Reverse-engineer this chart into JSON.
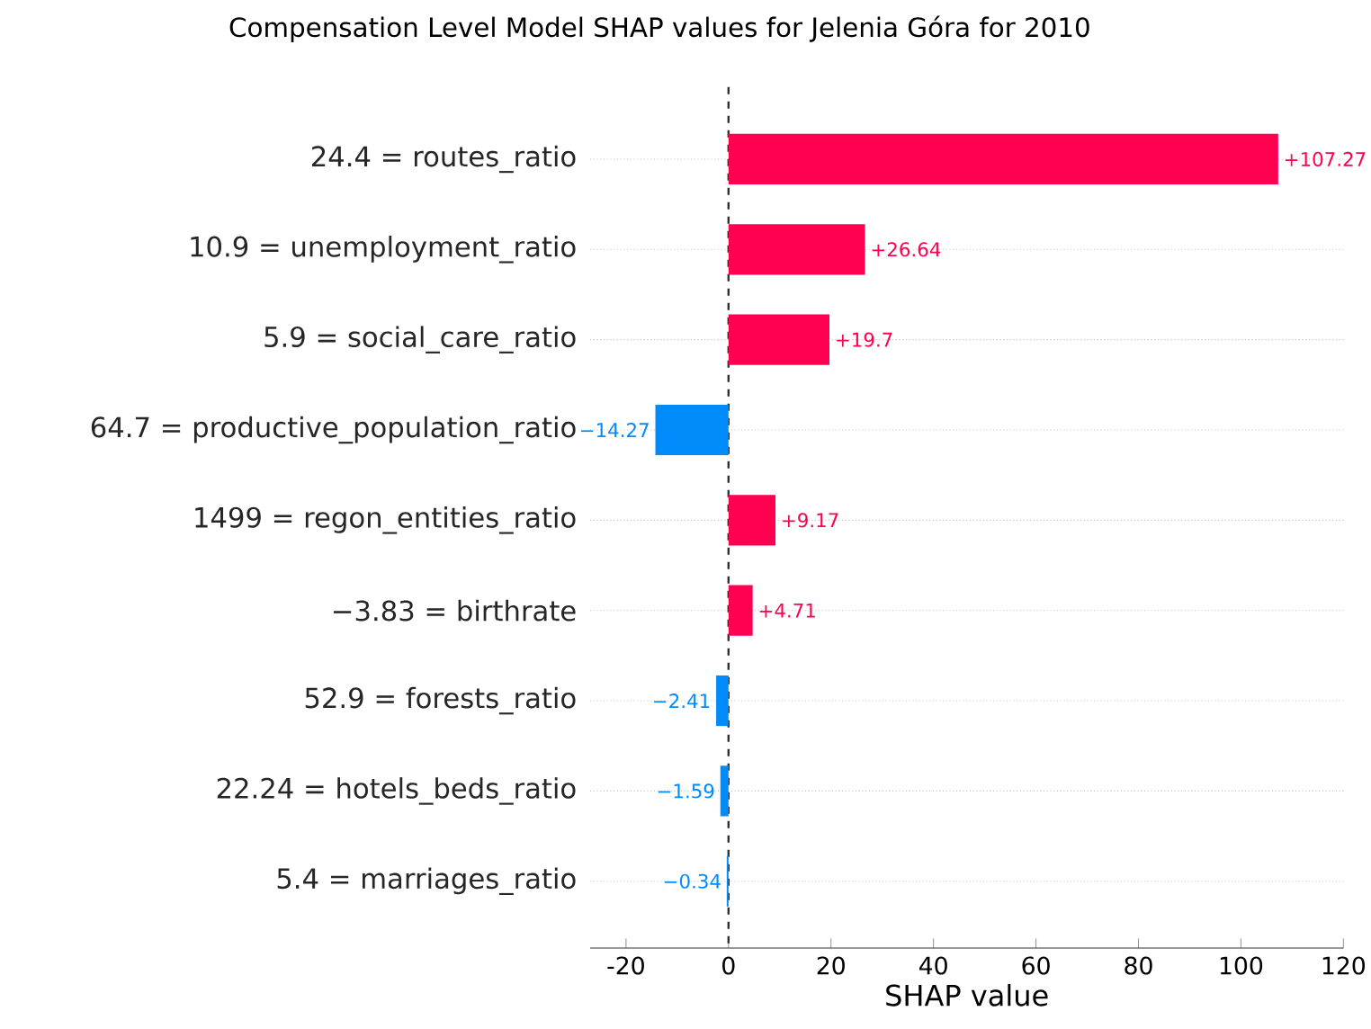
{
  "chart_data": {
    "type": "bar",
    "orientation": "horizontal",
    "title": "Compensation Level Model SHAP values for Jelenia Góra for 2010",
    "xlabel": "SHAP value",
    "categories": [
      "24.4 = routes_ratio",
      "10.9 = unemployment_ratio",
      "5.9 = social_care_ratio",
      "64.7 = productive_population_ratio",
      "1499 = regon_entities_ratio",
      "−3.83 = birthrate",
      "52.9 = forests_ratio",
      "22.24 = hotels_beds_ratio",
      "5.4 = marriages_ratio"
    ],
    "values": [
      107.27,
      26.64,
      19.7,
      -14.27,
      9.17,
      4.71,
      -2.41,
      -1.59,
      -0.34
    ],
    "value_labels": [
      "+107.27",
      "+26.64",
      "+19.7",
      "−14.27",
      "+9.17",
      "+4.71",
      "−2.41",
      "−1.59",
      "−0.34"
    ],
    "colors": [
      "#ff0051",
      "#ff0051",
      "#ff0051",
      "#008bfb",
      "#ff0051",
      "#ff0051",
      "#008bfb",
      "#008bfb",
      "#008bfb"
    ],
    "xlim": [
      -27,
      120
    ],
    "xticks": [
      -20,
      0,
      20,
      40,
      60,
      80,
      100,
      120
    ],
    "grid": "y",
    "ref_lines": [
      {
        "axis": "x",
        "value": 0,
        "color": "#333333",
        "line_style": "dashed"
      }
    ]
  }
}
